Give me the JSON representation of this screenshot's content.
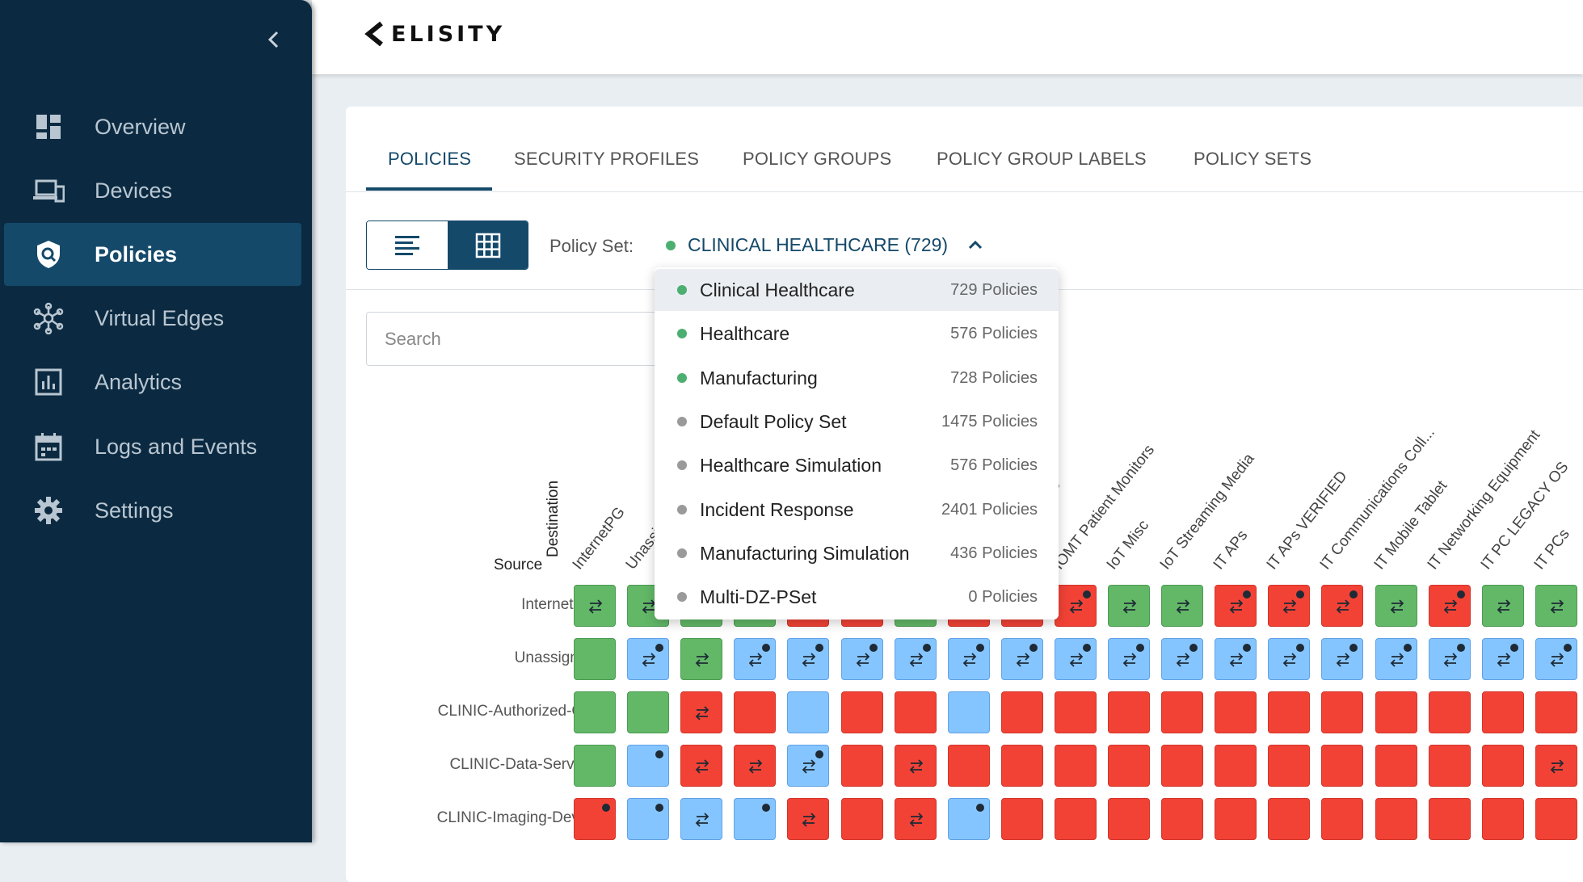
{
  "app": {
    "logo_text": "ELISITY"
  },
  "sidebar": {
    "collapse_icon": "chevron-left-icon",
    "items": [
      {
        "label": "Overview",
        "icon": "dashboard-icon",
        "active": false
      },
      {
        "label": "Devices",
        "icon": "devices-icon",
        "active": false
      },
      {
        "label": "Policies",
        "icon": "shield-icon",
        "active": true
      },
      {
        "label": "Virtual Edges",
        "icon": "network-nodes-icon",
        "active": false
      },
      {
        "label": "Analytics",
        "icon": "bar-chart-icon",
        "active": false
      },
      {
        "label": "Logs and Events",
        "icon": "calendar-icon",
        "active": false
      },
      {
        "label": "Settings",
        "icon": "gear-icon",
        "active": false
      }
    ]
  },
  "tabs": [
    {
      "label": "POLICIES",
      "active": true
    },
    {
      "label": "SECURITY PROFILES",
      "active": false
    },
    {
      "label": "POLICY GROUPS",
      "active": false
    },
    {
      "label": "POLICY GROUP LABELS",
      "active": false
    },
    {
      "label": "POLICY SETS",
      "active": false
    }
  ],
  "view_toggle": {
    "list_icon": "list-view-icon",
    "grid_icon": "grid-view-icon",
    "selected": "grid"
  },
  "policy_set": {
    "label": "Policy Set:",
    "value": "CLINICAL HEALTHCARE (729)",
    "status_color": "#4caf71"
  },
  "search": {
    "placeholder": "Search"
  },
  "matrix": {
    "destination_label": "Destination",
    "source_label": "Source",
    "columns": [
      "InternetPG",
      "Unassigned",
      "",
      "",
      "",
      "",
      "",
      "",
      "",
      "IOMT Patient Monitors",
      "IoT Misc",
      "IoT Streaming Media",
      "IT APs",
      "IT APs VERIFIED",
      "IT Communications Coll...",
      "IT Mobile Tablet",
      "IT Networking Equipment",
      "IT PC LEGACY OS",
      "IT PCs"
    ],
    "partial_column_fragment": "aging",
    "rows": [
      {
        "label": "InternetPG",
        "cells": [
          "g:a",
          "g:a",
          "g",
          "g",
          "r",
          "r",
          "g",
          "r",
          "r",
          "r:a:d",
          "g:a",
          "g:a",
          "r:a:d",
          "r:a:d",
          "r:a:d",
          "g:a",
          "r:a:d",
          "g:a",
          "g:a"
        ]
      },
      {
        "label": "Unassigned",
        "cells": [
          "g",
          "b:a:d",
          "g:a",
          "b:a:d",
          "b:a:d",
          "b:a:d",
          "b:a:d",
          "b:a:d",
          "b:a:d",
          "b:a:d",
          "b:a:d",
          "b:a:d",
          "b:a:d",
          "b:a:d",
          "b:a:d",
          "b:a:d",
          "b:a:d",
          "b:a:d",
          "b:a:d"
        ]
      },
      {
        "label": "CLINIC-Authorized-C...",
        "cells": [
          "g",
          "g",
          "r:a",
          "r",
          "b",
          "r",
          "r",
          "b",
          "r",
          "r",
          "r",
          "r",
          "r",
          "r",
          "r",
          "r",
          "r",
          "r",
          "r"
        ]
      },
      {
        "label": "CLINIC-Data-Servers",
        "cells": [
          "g",
          "b:d",
          "r:a",
          "r:a",
          "b:a:d",
          "r",
          "r:a",
          "r",
          "r",
          "r",
          "r",
          "r",
          "r",
          "r",
          "r",
          "r",
          "r",
          "r",
          "r:a"
        ]
      },
      {
        "label": "CLINIC-Imaging-Devi...",
        "cells": [
          "r:d",
          "b:d",
          "b:a",
          "b:d",
          "r:a",
          "r",
          "r:a",
          "b:d",
          "r",
          "r",
          "r",
          "r",
          "r",
          "r",
          "r",
          "r",
          "r",
          "r",
          "r"
        ]
      }
    ]
  },
  "dropdown": {
    "items": [
      {
        "name": "Clinical Healthcare",
        "count": "729 Policies",
        "color": "#4caf71",
        "selected": true
      },
      {
        "name": "Healthcare",
        "count": "576 Policies",
        "color": "#4caf71",
        "selected": false
      },
      {
        "name": "Manufacturing",
        "count": "728 Policies",
        "color": "#4caf71",
        "selected": false
      },
      {
        "name": "Default Policy Set",
        "count": "1475 Policies",
        "color": "#9a9a9a",
        "selected": false
      },
      {
        "name": "Healthcare Simulation",
        "count": "576 Policies",
        "color": "#9a9a9a",
        "selected": false
      },
      {
        "name": "Incident Response",
        "count": "2401 Policies",
        "color": "#9a9a9a",
        "selected": false
      },
      {
        "name": "Manufacturing Simulation",
        "count": "436 Policies",
        "color": "#9a9a9a",
        "selected": false
      },
      {
        "name": "Multi-DZ-PSet",
        "count": "0 Policies",
        "color": "#9a9a9a",
        "selected": false
      }
    ]
  }
}
